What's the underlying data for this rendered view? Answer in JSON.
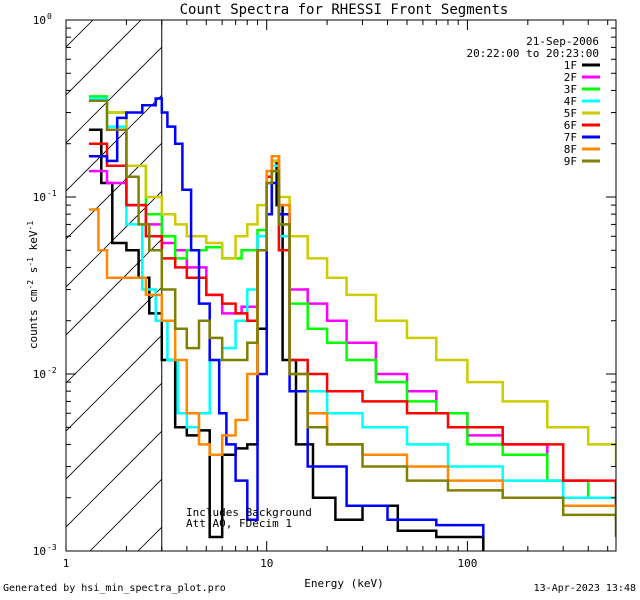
{
  "chart_data": {
    "type": "line",
    "title": "Count Spectra for RHESSI Front Segments",
    "xlabel": "Energy (keV)",
    "ylabel_main": "counts cm",
    "ylabel_exp1": "-2",
    "ylabel_s": "s",
    "ylabel_exp2": "-1",
    "ylabel_kev": "keV",
    "ylabel_exp3": "-1",
    "xscale": "log",
    "yscale": "log",
    "xlim": [
      1,
      550
    ],
    "ylim": [
      0.001,
      1.0
    ],
    "x_ticks": [
      {
        "value": 1,
        "label": "1"
      },
      {
        "value": 10,
        "label": "10"
      },
      {
        "value": 100,
        "label": "100"
      }
    ],
    "y_ticks": [
      {
        "value": 1,
        "base": "10",
        "exp": "0"
      },
      {
        "value": 0.1,
        "base": "10",
        "exp": "-1"
      },
      {
        "value": 0.01,
        "base": "10",
        "exp": "-2"
      },
      {
        "value": 0.001,
        "base": "10",
        "exp": "-3"
      }
    ],
    "date": "21-Sep-2006",
    "time_range": "20:22:00 to 20:23:00",
    "hatched_range": [
      1,
      3
    ],
    "annotations": [
      "Includes Background",
      "Att A0, FDecim 1"
    ],
    "series": [
      {
        "name": "1F",
        "color": "#000000",
        "points": [
          [
            1.3,
            0.24
          ],
          [
            1.5,
            0.12
          ],
          [
            1.7,
            0.055
          ],
          [
            2.0,
            0.05
          ],
          [
            2.3,
            0.035
          ],
          [
            2.6,
            0.022
          ],
          [
            3.0,
            0.012
          ],
          [
            3.5,
            0.005
          ],
          [
            4.0,
            0.0045
          ],
          [
            4.6,
            0.0048
          ],
          [
            5.2,
            0.0012
          ],
          [
            6.0,
            0.0035
          ],
          [
            7.0,
            0.0038
          ],
          [
            8.0,
            0.004
          ],
          [
            9.0,
            0.018
          ],
          [
            10.0,
            0.08
          ],
          [
            10.6,
            0.16
          ],
          [
            11.2,
            0.09
          ],
          [
            12.0,
            0.012
          ],
          [
            14.0,
            0.004
          ],
          [
            17.0,
            0.002
          ],
          [
            22.0,
            0.0015
          ],
          [
            30.0,
            0.0018
          ],
          [
            45.0,
            0.0013
          ],
          [
            70.0,
            0.0012
          ],
          [
            120.0,
            0.001
          ]
        ]
      },
      {
        "name": "2F",
        "color": "#ff00ff",
        "points": [
          [
            1.3,
            0.14
          ],
          [
            1.6,
            0.12
          ],
          [
            2.0,
            0.09
          ],
          [
            2.5,
            0.07
          ],
          [
            3.0,
            0.055
          ],
          [
            3.5,
            0.05
          ],
          [
            4.0,
            0.04
          ],
          [
            5.0,
            0.028
          ],
          [
            6.0,
            0.022
          ],
          [
            7.5,
            0.024
          ],
          [
            9.0,
            0.06
          ],
          [
            10.0,
            0.12
          ],
          [
            10.6,
            0.15
          ],
          [
            11.5,
            0.08
          ],
          [
            13.0,
            0.03
          ],
          [
            16.0,
            0.025
          ],
          [
            20.0,
            0.02
          ],
          [
            25.0,
            0.015
          ],
          [
            35.0,
            0.01
          ],
          [
            50.0,
            0.008
          ],
          [
            70.0,
            0.006
          ],
          [
            100.0,
            0.0045
          ],
          [
            150.0,
            0.004
          ],
          [
            250.0,
            0.0025
          ],
          [
            400.0,
            0.002
          ],
          [
            550.0,
            0.0018
          ]
        ]
      },
      {
        "name": "3F",
        "color": "#00ff00",
        "points": [
          [
            1.3,
            0.37
          ],
          [
            1.6,
            0.3
          ],
          [
            2.0,
            0.15
          ],
          [
            2.5,
            0.08
          ],
          [
            3.0,
            0.06
          ],
          [
            3.5,
            0.045
          ],
          [
            4.0,
            0.05
          ],
          [
            5.0,
            0.052
          ],
          [
            6.0,
            0.045
          ],
          [
            7.5,
            0.05
          ],
          [
            9.0,
            0.065
          ],
          [
            10.0,
            0.12
          ],
          [
            10.6,
            0.14
          ],
          [
            11.5,
            0.07
          ],
          [
            13.0,
            0.025
          ],
          [
            16.0,
            0.018
          ],
          [
            20.0,
            0.015
          ],
          [
            25.0,
            0.012
          ],
          [
            35.0,
            0.009
          ],
          [
            50.0,
            0.007
          ],
          [
            70.0,
            0.006
          ],
          [
            100.0,
            0.004
          ],
          [
            150.0,
            0.0035
          ],
          [
            250.0,
            0.0025
          ],
          [
            400.0,
            0.002
          ],
          [
            550.0,
            0.0016
          ]
        ]
      },
      {
        "name": "4F",
        "color": "#00ffff",
        "points": [
          [
            1.3,
            0.36
          ],
          [
            1.6,
            0.25
          ],
          [
            2.0,
            0.07
          ],
          [
            2.4,
            0.03
          ],
          [
            2.8,
            0.02
          ],
          [
            3.2,
            0.012
          ],
          [
            3.6,
            0.006
          ],
          [
            4.0,
            0.005
          ],
          [
            4.6,
            0.006
          ],
          [
            5.2,
            0.012
          ],
          [
            6.0,
            0.014
          ],
          [
            7.0,
            0.02
          ],
          [
            8.0,
            0.03
          ],
          [
            9.0,
            0.06
          ],
          [
            10.0,
            0.12
          ],
          [
            10.6,
            0.15
          ],
          [
            11.5,
            0.06
          ],
          [
            13.0,
            0.012
          ],
          [
            16.0,
            0.008
          ],
          [
            20.0,
            0.006
          ],
          [
            30.0,
            0.005
          ],
          [
            50.0,
            0.004
          ],
          [
            80.0,
            0.003
          ],
          [
            150.0,
            0.0025
          ],
          [
            300.0,
            0.002
          ],
          [
            550.0,
            0.0015
          ]
        ]
      },
      {
        "name": "5F",
        "color": "#cccc00",
        "points": [
          [
            1.3,
            0.35
          ],
          [
            1.6,
            0.3
          ],
          [
            2.0,
            0.15
          ],
          [
            2.5,
            0.1
          ],
          [
            3.0,
            0.08
          ],
          [
            3.5,
            0.07
          ],
          [
            4.0,
            0.06
          ],
          [
            5.0,
            0.055
          ],
          [
            6.0,
            0.045
          ],
          [
            7.0,
            0.06
          ],
          [
            8.0,
            0.07
          ],
          [
            9.0,
            0.09
          ],
          [
            10.0,
            0.13
          ],
          [
            10.6,
            0.16
          ],
          [
            11.5,
            0.1
          ],
          [
            13.0,
            0.06
          ],
          [
            16.0,
            0.045
          ],
          [
            20.0,
            0.035
          ],
          [
            25.0,
            0.028
          ],
          [
            35.0,
            0.02
          ],
          [
            50.0,
            0.016
          ],
          [
            70.0,
            0.012
          ],
          [
            100.0,
            0.009
          ],
          [
            150.0,
            0.007
          ],
          [
            250.0,
            0.005
          ],
          [
            400.0,
            0.004
          ],
          [
            550.0,
            0.003
          ]
        ]
      },
      {
        "name": "6F",
        "color": "#ff0000",
        "points": [
          [
            1.3,
            0.2
          ],
          [
            1.6,
            0.15
          ],
          [
            2.0,
            0.09
          ],
          [
            2.5,
            0.06
          ],
          [
            3.0,
            0.045
          ],
          [
            3.5,
            0.04
          ],
          [
            4.0,
            0.035
          ],
          [
            5.0,
            0.028
          ],
          [
            6.0,
            0.025
          ],
          [
            7.0,
            0.022
          ],
          [
            8.0,
            0.02
          ],
          [
            9.0,
            0.05
          ],
          [
            10.0,
            0.13
          ],
          [
            10.6,
            0.17
          ],
          [
            11.5,
            0.05
          ],
          [
            13.0,
            0.012
          ],
          [
            16.0,
            0.01
          ],
          [
            20.0,
            0.008
          ],
          [
            30.0,
            0.007
          ],
          [
            50.0,
            0.006
          ],
          [
            80.0,
            0.005
          ],
          [
            150.0,
            0.004
          ],
          [
            300.0,
            0.0025
          ],
          [
            550.0,
            0.0018
          ]
        ]
      },
      {
        "name": "7F",
        "color": "#0000ff",
        "points": [
          [
            1.3,
            0.17
          ],
          [
            1.6,
            0.16
          ],
          [
            1.8,
            0.28
          ],
          [
            2.0,
            0.3
          ],
          [
            2.4,
            0.33
          ],
          [
            2.8,
            0.36
          ],
          [
            3.0,
            0.3
          ],
          [
            3.2,
            0.25
          ],
          [
            3.5,
            0.2
          ],
          [
            3.8,
            0.11
          ],
          [
            4.2,
            0.05
          ],
          [
            4.6,
            0.025
          ],
          [
            5.2,
            0.012
          ],
          [
            5.8,
            0.006
          ],
          [
            6.3,
            0.004
          ],
          [
            7.0,
            0.0025
          ],
          [
            8.0,
            0.0015
          ],
          [
            9.0,
            0.01
          ],
          [
            10.0,
            0.08
          ],
          [
            10.6,
            0.12
          ],
          [
            11.5,
            0.08
          ],
          [
            13.0,
            0.008
          ],
          [
            16.0,
            0.003
          ],
          [
            25.0,
            0.0018
          ],
          [
            40.0,
            0.0015
          ],
          [
            70.0,
            0.0014
          ],
          [
            120.0,
            0.0012
          ]
        ]
      },
      {
        "name": "8F",
        "color": "#ff8800",
        "points": [
          [
            1.3,
            0.085
          ],
          [
            1.45,
            0.05
          ],
          [
            1.6,
            0.035
          ],
          [
            2.0,
            0.035
          ],
          [
            2.5,
            0.028
          ],
          [
            3.0,
            0.02
          ],
          [
            3.5,
            0.012
          ],
          [
            4.0,
            0.006
          ],
          [
            4.6,
            0.004
          ],
          [
            5.2,
            0.0035
          ],
          [
            6.0,
            0.0045
          ],
          [
            7.0,
            0.0055
          ],
          [
            8.0,
            0.01
          ],
          [
            9.0,
            0.05
          ],
          [
            10.0,
            0.14
          ],
          [
            10.6,
            0.17
          ],
          [
            11.5,
            0.09
          ],
          [
            13.0,
            0.01
          ],
          [
            16.0,
            0.006
          ],
          [
            20.0,
            0.004
          ],
          [
            30.0,
            0.0035
          ],
          [
            50.0,
            0.003
          ],
          [
            80.0,
            0.0025
          ],
          [
            150.0,
            0.002
          ],
          [
            300.0,
            0.0018
          ],
          [
            550.0,
            0.0015
          ]
        ]
      },
      {
        "name": "9F",
        "color": "#808000",
        "points": [
          [
            1.3,
            0.35
          ],
          [
            1.6,
            0.24
          ],
          [
            2.0,
            0.13
          ],
          [
            2.3,
            0.07
          ],
          [
            2.6,
            0.05
          ],
          [
            3.0,
            0.03
          ],
          [
            3.5,
            0.018
          ],
          [
            4.0,
            0.014
          ],
          [
            4.6,
            0.02
          ],
          [
            5.2,
            0.016
          ],
          [
            6.0,
            0.012
          ],
          [
            7.0,
            0.012
          ],
          [
            8.0,
            0.015
          ],
          [
            9.0,
            0.05
          ],
          [
            10.0,
            0.12
          ],
          [
            10.6,
            0.14
          ],
          [
            11.5,
            0.07
          ],
          [
            13.0,
            0.01
          ],
          [
            16.0,
            0.005
          ],
          [
            20.0,
            0.004
          ],
          [
            30.0,
            0.003
          ],
          [
            50.0,
            0.0025
          ],
          [
            80.0,
            0.0022
          ],
          [
            150.0,
            0.002
          ],
          [
            300.0,
            0.0016
          ],
          [
            550.0,
            0.0012
          ]
        ]
      }
    ]
  },
  "footer": {
    "left": "Generated by hsi_min_spectra_plot.pro",
    "right": "13-Apr-2023 13:48"
  }
}
